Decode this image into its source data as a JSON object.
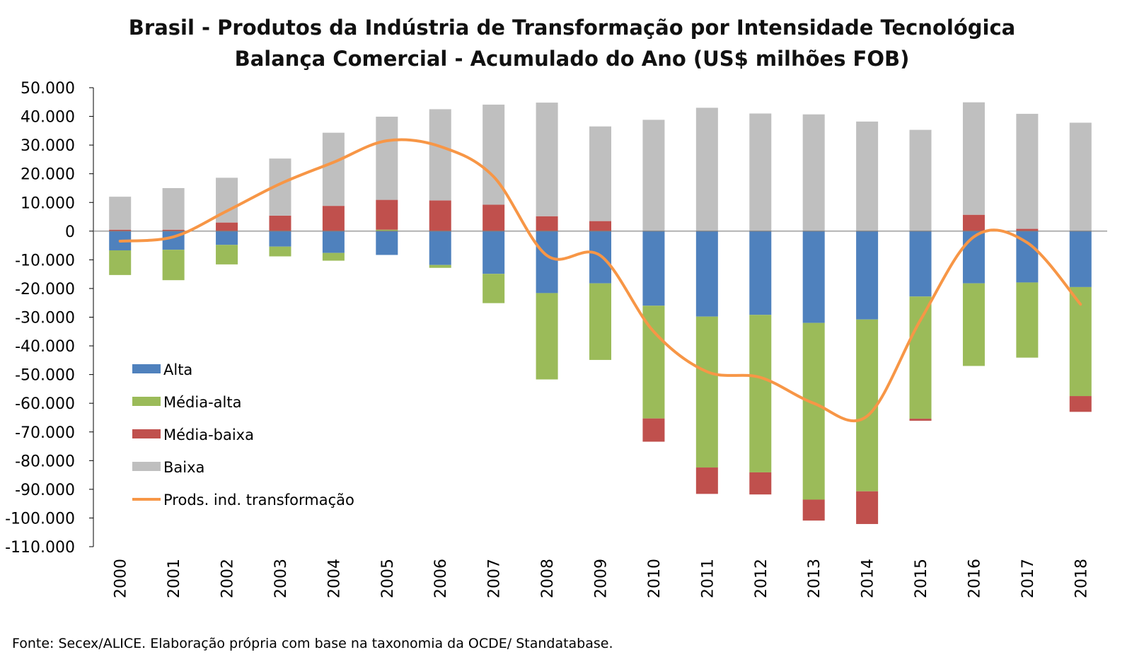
{
  "title_line1": "Brasil - Produtos da Indústria de Transformação por Intensidade Tecnológica",
  "title_line2": "Balança Comercial - Acumulado do Ano (US$ milhões FOB)",
  "source": "Fonte: Secex/ALICE. Elaboração própria com base na taxonomia da OCDE/ Standatabase.",
  "colors": {
    "Alta": "#4F81BD",
    "Média-alta": "#9BBB59",
    "Média-baixa": "#C0504D",
    "Baixa": "#BFBFBF",
    "Prods. ind. transformação": "#F79646"
  },
  "chart_data": {
    "type": "bar",
    "stacked": true,
    "title": "Brasil - Produtos da Indústria de Transformação por Intensidade Tecnológica — Balança Comercial - Acumulado do Ano (US$ milhões FOB)",
    "categories": [
      "2000",
      "2001",
      "2002",
      "2003",
      "2004",
      "2005",
      "2006",
      "2007",
      "2008",
      "2009",
      "2010",
      "2011",
      "2012",
      "2013",
      "2014",
      "2015",
      "2016",
      "2017",
      "2018"
    ],
    "ylim": [
      -110000,
      50000
    ],
    "yticks": [
      50000,
      40000,
      30000,
      20000,
      10000,
      0,
      -10000,
      -20000,
      -30000,
      -40000,
      -50000,
      -60000,
      -70000,
      -80000,
      -90000,
      -100000,
      -110000
    ],
    "ytick_labels": [
      "50.000",
      "40.000",
      "30.000",
      "20.000",
      "10.000",
      "0",
      "-10.000",
      "-20.000",
      "-30.000",
      "-40.000",
      "-50.000",
      "-60.000",
      "-70.000",
      "-80.000",
      "-90.000",
      "-100.000",
      "-110.000"
    ],
    "legend_position": "left-bottom inside plot",
    "grid": false,
    "series": [
      {
        "name": "Alta",
        "kind": "bar",
        "values": [
          -6700,
          -6500,
          -4800,
          -5400,
          -7600,
          -8300,
          -11800,
          -14900,
          -21600,
          -18200,
          -26000,
          -29800,
          -29200,
          -32000,
          -30800,
          -22800,
          -18200,
          -17900,
          -19500
        ]
      },
      {
        "name": "Média-alta",
        "kind": "bar",
        "values": [
          -8600,
          -10600,
          -6800,
          -3400,
          -2700,
          500,
          -1000,
          -10200,
          -30100,
          -26700,
          -39300,
          -52600,
          -54900,
          -61600,
          -59900,
          -42600,
          -28800,
          -26200,
          -38000
        ]
      },
      {
        "name": "Média-baixa",
        "kind": "bar",
        "values": [
          500,
          500,
          3000,
          5400,
          8800,
          10400,
          10700,
          9200,
          5200,
          3500,
          -8100,
          -9200,
          -7700,
          -7300,
          -11400,
          -700,
          5700,
          800,
          -5500
        ]
      },
      {
        "name": "Baixa",
        "kind": "bar",
        "values": [
          11500,
          14500,
          15600,
          19900,
          25500,
          29000,
          31800,
          34900,
          39600,
          33000,
          38800,
          43000,
          41000,
          40700,
          38200,
          35300,
          39200,
          40100,
          37800
        ]
      },
      {
        "name": "Prods. ind. transformação",
        "kind": "line",
        "values": [
          -3500,
          -2000,
          7000,
          16500,
          24000,
          31500,
          29500,
          19000,
          -8500,
          -8500,
          -35000,
          -49000,
          -51000,
          -60000,
          -64500,
          -31000,
          -2000,
          -4000,
          -25500
        ]
      }
    ]
  }
}
